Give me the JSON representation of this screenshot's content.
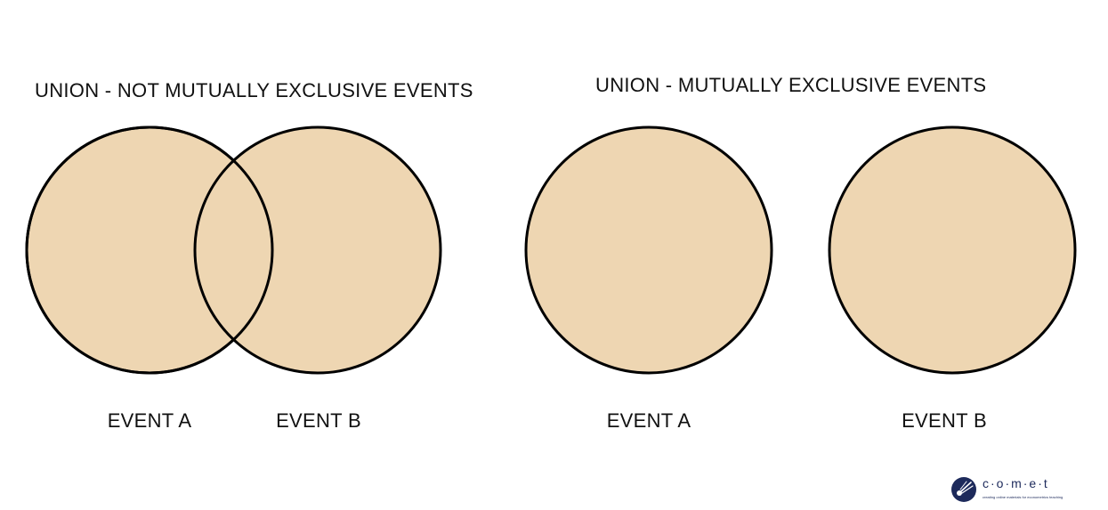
{
  "left_diagram": {
    "title": "UNION - NOT MUTUALLY EXCLUSIVE EVENTS",
    "label_a": "EVENT A",
    "label_b": "EVENT B"
  },
  "right_diagram": {
    "title": "UNION - MUTUALLY EXCLUSIVE EVENTS",
    "label_a": "EVENT A",
    "label_b": "EVENT B"
  },
  "colors": {
    "circle_fill": "#eed6b2",
    "circle_stroke": "#000000",
    "brand": "#1d2a5b"
  },
  "logo": {
    "wordmark": "c·o·m·e·t",
    "tagline": "creating online materials for econometrics teaching",
    "icon": "comet-icon"
  }
}
